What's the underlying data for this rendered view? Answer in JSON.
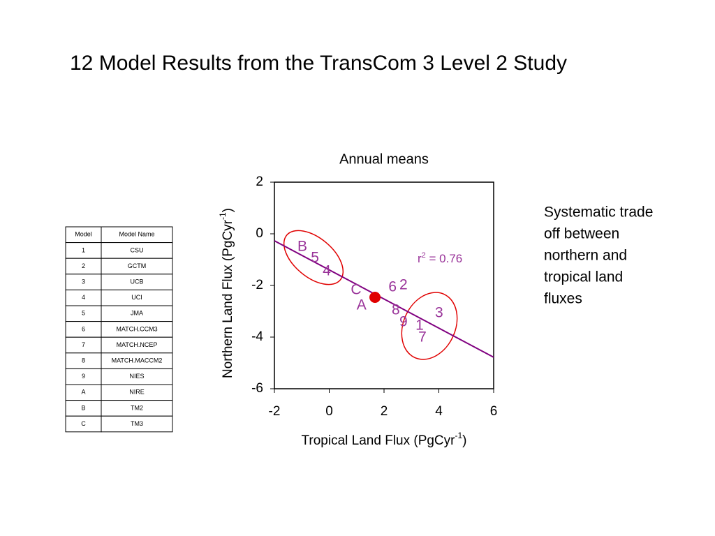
{
  "title": "12 Model Results from the TransCom 3 Level 2 Study",
  "table": {
    "header": [
      "Model",
      "Model Name"
    ],
    "rows": [
      [
        "1",
        "CSU"
      ],
      [
        "2",
        "GCTM"
      ],
      [
        "3",
        "UCB"
      ],
      [
        "4",
        "UCI"
      ],
      [
        "5",
        "JMA"
      ],
      [
        "6",
        "MATCH.CCM3"
      ],
      [
        "7",
        "MATCH.NCEP"
      ],
      [
        "8",
        "MATCH.MACCM2"
      ],
      [
        "9",
        "NIES"
      ],
      [
        "A",
        "NIRE"
      ],
      [
        "B",
        "TM2"
      ],
      [
        "C",
        "TM3"
      ]
    ]
  },
  "note": [
    "Systematic trade",
    "off between",
    "northern and",
    "tropical land",
    "fluxes"
  ],
  "chart_data": {
    "type": "scatter",
    "title": "Annual means",
    "xlabel": {
      "text": "Tropical Land Flux (PgCyr",
      "sup": "-1",
      "end": ")"
    },
    "ylabel": {
      "text": "Northern Land Flux (PgCyr",
      "sup": "-1",
      "end": ")"
    },
    "point_labels": [
      "B",
      "5",
      "4",
      "C",
      "A",
      "6",
      "2",
      "8",
      "9",
      "1",
      "3",
      "7"
    ],
    "x": [
      -0.98,
      -0.52,
      -0.09,
      0.98,
      1.18,
      2.31,
      2.71,
      2.43,
      2.71,
      3.3,
      4.01,
      3.4
    ],
    "values": [
      -0.51,
      -0.95,
      -1.46,
      -2.19,
      -2.78,
      -2.08,
      -2.0,
      -2.97,
      -3.43,
      -3.57,
      -3.08,
      -4.03
    ],
    "color": "#993399",
    "highlight": {
      "x": 1.67,
      "y": -2.46,
      "color": "#e00000"
    },
    "fit_line": {
      "x": [
        -2,
        6
      ],
      "y": [
        -0.27,
        -4.78
      ],
      "color": "#800080"
    },
    "annotation": {
      "base": "r",
      "sup": "2",
      "text": " = 0.76"
    },
    "xlim": [
      -2,
      6
    ],
    "xticks": [
      -2,
      0,
      2,
      4,
      6
    ],
    "ylim": [
      -6,
      2
    ],
    "yticks": [
      -6,
      -4,
      -2,
      0,
      2
    ]
  }
}
